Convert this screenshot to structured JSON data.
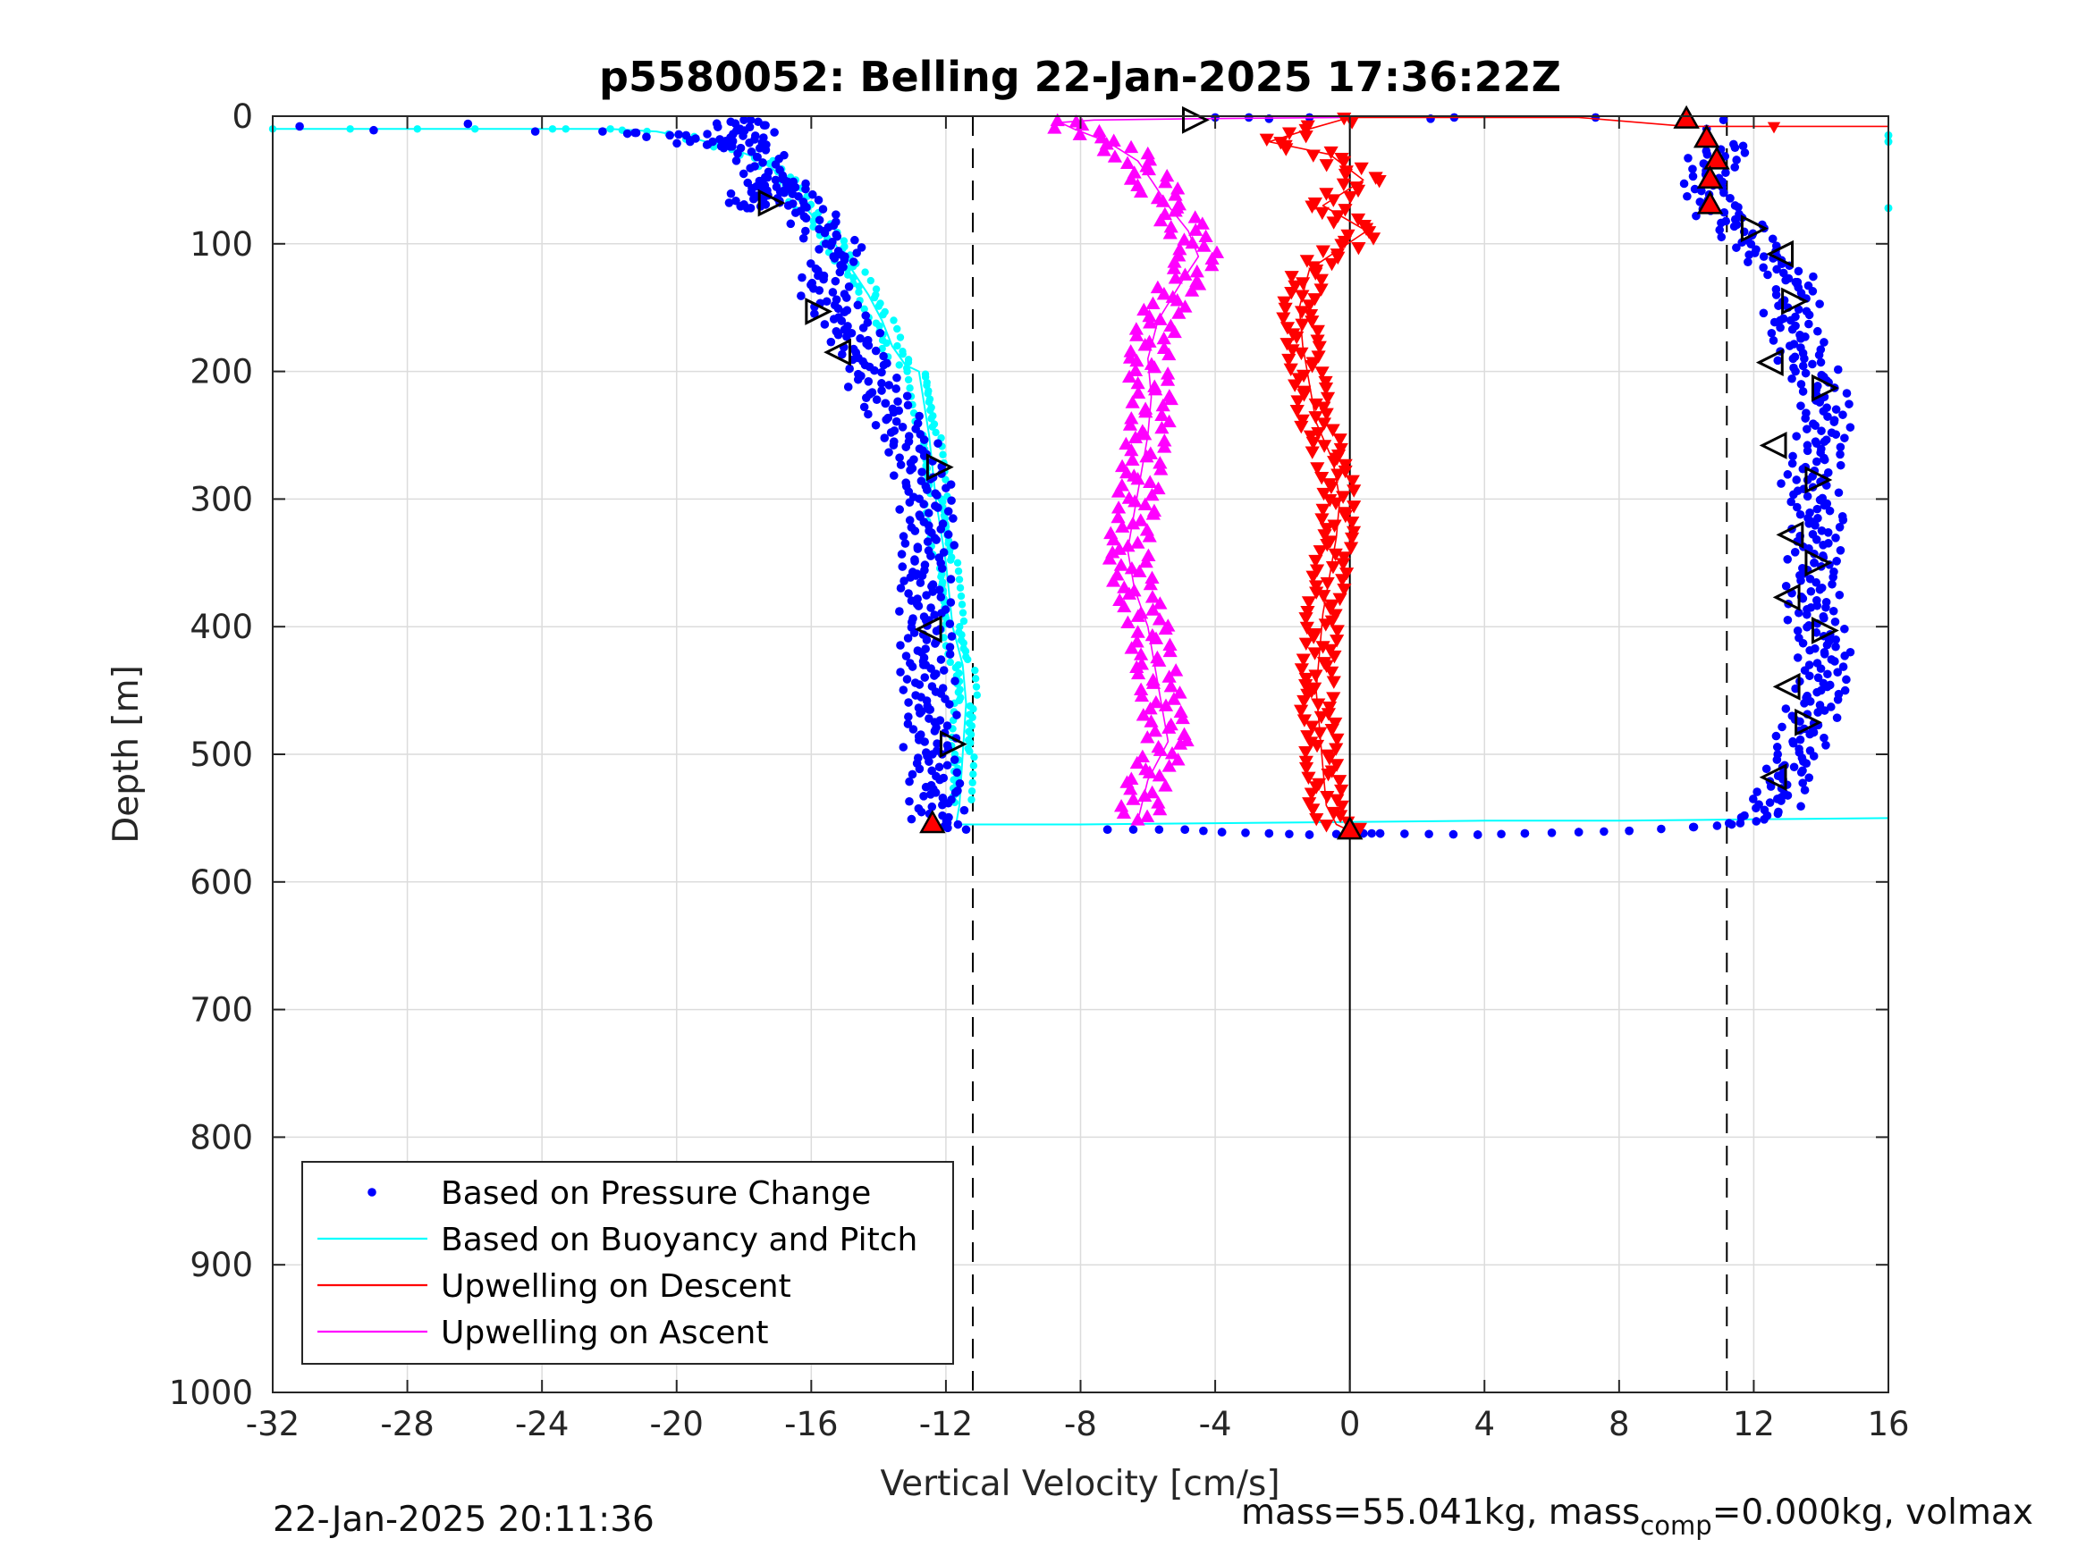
{
  "chart_data": {
    "type": "scatter",
    "title": "p5580052: Belling 22-Jan-2025 17:36:22Z",
    "xlabel": "Vertical Velocity [cm/s]",
    "ylabel": "Depth [m]",
    "xlim": [
      -32,
      16
    ],
    "ylim": [
      0,
      1000
    ],
    "y_reversed": true,
    "grid": true,
    "xticks": [
      "-32",
      "-28",
      "-24",
      "-20",
      "-16",
      "-12",
      "-8",
      "-4",
      "0",
      "4",
      "8",
      "12",
      "16"
    ],
    "yticks": [
      "0",
      "100",
      "200",
      "300",
      "400",
      "500",
      "600",
      "700",
      "800",
      "900",
      "1000"
    ],
    "legend": {
      "placement": "bottom-left",
      "entries": [
        {
          "label": "Based on Pressure Change",
          "color": "#0000ff",
          "marker": "dot"
        },
        {
          "label": "Based on Buoyancy and Pitch",
          "color": "#00ffff",
          "marker": "line"
        },
        {
          "label": "Upwelling on Descent",
          "color": "#ff0000",
          "marker": "line"
        },
        {
          "label": "Upwelling on Ascent",
          "color": "#ff00ff",
          "marker": "line"
        }
      ]
    },
    "reference_lines": [
      {
        "orientation": "vertical",
        "x": -11.2,
        "style": "dashed"
      },
      {
        "orientation": "vertical",
        "x": 11.2,
        "style": "dashed"
      },
      {
        "orientation": "vertical",
        "x": 0,
        "style": "solid",
        "depth_range": [
          0,
          1000
        ]
      }
    ],
    "series": [
      {
        "name": "Based on Pressure Change",
        "color": "#0000ff",
        "marker": "dot",
        "points": [
          [
            -31.2,
            8
          ],
          [
            -29,
            11
          ],
          [
            -26.2,
            6
          ],
          [
            -24.2,
            12
          ],
          [
            -22.2,
            12
          ],
          [
            -21.2,
            13
          ],
          [
            -20.2,
            15
          ],
          [
            -19.6,
            20
          ],
          [
            -18.6,
            25
          ],
          [
            -18,
            3
          ],
          [
            -17.6,
            32
          ],
          [
            -17.3,
            48
          ],
          [
            -17.8,
            72
          ],
          [
            -16.8,
            50
          ],
          [
            -16.2,
            70
          ],
          [
            -15.6,
            90
          ],
          [
            -15,
            110
          ],
          [
            -15.8,
            125
          ],
          [
            -15.3,
            148
          ],
          [
            -14.8,
            170
          ],
          [
            -14.4,
            195
          ],
          [
            -13.8,
            225
          ],
          [
            -13.1,
            255
          ],
          [
            -12.6,
            290
          ],
          [
            -12.5,
            325
          ],
          [
            -12.7,
            360
          ],
          [
            -12.5,
            395
          ],
          [
            -12.6,
            430
          ],
          [
            -12.5,
            465
          ],
          [
            -12.4,
            500
          ],
          [
            -12.3,
            530
          ],
          [
            -12.3,
            555
          ],
          [
            -11.4,
            559
          ],
          [
            -7.2,
            559
          ],
          [
            -4.9,
            559
          ],
          [
            -3.8,
            561
          ],
          [
            -2.4,
            562
          ],
          [
            -1.2,
            563
          ],
          [
            0.4,
            562
          ],
          [
            0.9,
            562
          ],
          [
            3.8,
            563
          ],
          [
            5.2,
            562
          ],
          [
            6.8,
            561
          ],
          [
            8.3,
            560
          ],
          [
            10.2,
            557
          ],
          [
            11.6,
            554
          ],
          [
            12.4,
            548
          ],
          [
            12.7,
            535
          ],
          [
            13.2,
            510
          ],
          [
            13.5,
            480
          ],
          [
            14,
            450
          ],
          [
            14.1,
            420
          ],
          [
            13.7,
            385
          ],
          [
            13.8,
            350
          ],
          [
            13.9,
            315
          ],
          [
            13.6,
            285
          ],
          [
            14.1,
            255
          ],
          [
            14.1,
            220
          ],
          [
            13.5,
            190
          ],
          [
            13.1,
            160
          ],
          [
            13.3,
            130
          ],
          [
            12.3,
            110
          ],
          [
            11.5,
            85
          ],
          [
            10.7,
            70
          ],
          [
            10.6,
            50
          ],
          [
            10.9,
            30
          ],
          [
            11.4,
            22
          ],
          [
            10.6,
            10
          ],
          [
            11.1,
            3
          ],
          [
            7.3,
            1
          ],
          [
            3.1,
            1
          ],
          [
            2.4,
            2
          ],
          [
            -4,
            1
          ],
          [
            -3,
            1
          ],
          [
            -2.4,
            2
          ],
          [
            -1.2,
            1
          ]
        ]
      },
      {
        "name": "Based on Buoyancy and Pitch",
        "color": "#00ffff",
        "marker": "line",
        "points": [
          [
            -32,
            10
          ],
          [
            -28,
            10
          ],
          [
            -24,
            10
          ],
          [
            -22,
            10
          ],
          [
            -20.6,
            12
          ],
          [
            -19.4,
            18
          ],
          [
            -18.3,
            26
          ],
          [
            -17.4,
            35
          ],
          [
            -16.8,
            50
          ],
          [
            -16.4,
            65
          ],
          [
            -15.9,
            80
          ],
          [
            -15.3,
            100
          ],
          [
            -14.8,
            120
          ],
          [
            -14.3,
            140
          ],
          [
            -13.9,
            160
          ],
          [
            -13.6,
            180
          ],
          [
            -13.2,
            195
          ],
          [
            -12.8,
            200
          ],
          [
            -12.5,
            250
          ],
          [
            -12.3,
            300
          ],
          [
            -12,
            350
          ],
          [
            -11.8,
            400
          ],
          [
            -11.5,
            430
          ],
          [
            -11.4,
            460
          ],
          [
            -11.5,
            500
          ],
          [
            -11.6,
            540
          ],
          [
            -11.7,
            555
          ],
          [
            -8,
            555
          ],
          [
            -4,
            554
          ],
          [
            0,
            553
          ],
          [
            4,
            552
          ],
          [
            8,
            552
          ],
          [
            12,
            551
          ],
          [
            16,
            550
          ]
        ],
        "extra_points": [
          [
            16,
            15
          ],
          [
            16,
            20
          ],
          [
            16,
            72
          ]
        ]
      },
      {
        "name": "Upwelling on Descent",
        "color": "#ff0000",
        "marker": "triangle-down",
        "points": [
          [
            16,
            8
          ],
          [
            12.6,
            8
          ],
          [
            10,
            8
          ],
          [
            6.8,
            1
          ],
          [
            2.4,
            1
          ],
          [
            0,
            1
          ],
          [
            -1.2,
            10
          ],
          [
            -2.4,
            20
          ],
          [
            -0.6,
            30
          ],
          [
            0.4,
            50
          ],
          [
            -0.8,
            70
          ],
          [
            0.5,
            90
          ],
          [
            -1.2,
            120
          ],
          [
            -1.5,
            150
          ],
          [
            -1.4,
            180
          ],
          [
            -1.2,
            210
          ],
          [
            -1,
            240
          ],
          [
            -0.5,
            270
          ],
          [
            -0.3,
            300
          ],
          [
            -0.4,
            330
          ],
          [
            -0.6,
            360
          ],
          [
            -0.8,
            390
          ],
          [
            -0.9,
            420
          ],
          [
            -1,
            450
          ],
          [
            -0.9,
            480
          ],
          [
            -0.8,
            510
          ],
          [
            -0.7,
            540
          ],
          [
            -0.4,
            555
          ],
          [
            0,
            560
          ]
        ]
      },
      {
        "name": "Upwelling on Ascent",
        "color": "#ff00ff",
        "marker": "triangle-up",
        "points": [
          [
            -6.3,
            552
          ],
          [
            -6,
            520
          ],
          [
            -5.4,
            490
          ],
          [
            -5.6,
            460
          ],
          [
            -5.8,
            430
          ],
          [
            -6,
            400
          ],
          [
            -6.4,
            370
          ],
          [
            -6.6,
            340
          ],
          [
            -6.4,
            310
          ],
          [
            -6.2,
            280
          ],
          [
            -6,
            250
          ],
          [
            -5.9,
            220
          ],
          [
            -6,
            190
          ],
          [
            -5.7,
            160
          ],
          [
            -5,
            130
          ],
          [
            -4.5,
            110
          ],
          [
            -4.8,
            90
          ],
          [
            -5.4,
            70
          ],
          [
            -5.9,
            50
          ],
          [
            -6.3,
            35
          ],
          [
            -7.2,
            20
          ],
          [
            -8.2,
            10
          ],
          [
            -8.6,
            5
          ],
          [
            -7.6,
            3
          ],
          [
            -4.8,
            2
          ],
          [
            0,
            1
          ]
        ]
      }
    ],
    "markers": {
      "triangles_right_open": [
        [
          -17.2,
          68
        ],
        [
          -15.8,
          153
        ],
        [
          -12.2,
          275
        ],
        [
          -11.8,
          492
        ],
        [
          13.2,
          145
        ],
        [
          13.9,
          285
        ],
        [
          13.9,
          350
        ],
        [
          14.1,
          403
        ],
        [
          13.6,
          475
        ],
        [
          14.1,
          213
        ],
        [
          12,
          88
        ],
        [
          -4.6,
          3
        ]
      ],
      "triangles_left_open": [
        [
          -15.2,
          185
        ],
        [
          -12.5,
          402
        ],
        [
          12.8,
          108
        ],
        [
          12.5,
          193
        ],
        [
          12.6,
          258
        ],
        [
          13.1,
          328
        ],
        [
          13,
          377
        ],
        [
          13,
          447
        ],
        [
          12.6,
          518
        ]
      ],
      "red_triangles_up": [
        [
          10,
          3
        ],
        [
          10.6,
          18
        ],
        [
          10.9,
          35
        ],
        [
          10.7,
          50
        ],
        [
          10.7,
          70
        ],
        [
          -12.4,
          555
        ],
        [
          0,
          560
        ]
      ]
    }
  },
  "footer": {
    "timestamp": "22-Jan-2025 20:11:36",
    "mass_text": "mass=55.041kg, mass",
    "mass_sub": "comp",
    "mass_rest": "=0.000kg, volmax"
  }
}
